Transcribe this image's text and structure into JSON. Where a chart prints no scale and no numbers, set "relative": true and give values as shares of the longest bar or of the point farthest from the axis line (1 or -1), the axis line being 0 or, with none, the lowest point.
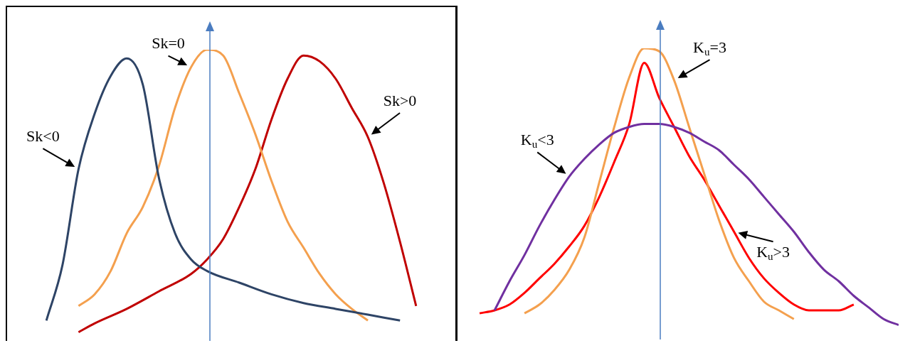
{
  "chart_data": [
    {
      "type": "line",
      "relative": true,
      "legend": false,
      "grid": false,
      "marker": "none",
      "line_style": "solid",
      "categories": [
        null,
        null,
        null,
        null,
        null,
        null,
        null,
        null,
        null,
        null,
        null,
        null,
        null,
        null,
        null,
        null,
        null,
        null,
        null,
        null,
        null,
        null,
        null,
        null,
        null,
        null,
        null,
        null
      ],
      "series": [
        {
          "name": "Sk<0",
          "color": "#2e4466",
          "values": [
            null,
            null,
            0.07,
            0.26,
            0.59,
            0.78,
            0.91,
            0.97,
            0.88,
            0.56,
            0.37,
            0.28,
            0.24,
            null,
            0.2,
            null,
            0.16,
            null,
            0.13,
            null,
            0.11,
            null,
            0.09,
            null,
            0.07,
            null,
            null,
            null
          ]
        },
        {
          "name": "Sk=0",
          "color": "#f4a04e",
          "values": [
            null,
            null,
            null,
            null,
            0.12,
            0.16,
            0.24,
            0.37,
            0.46,
            0.6,
            0.8,
            0.94,
            1.0,
            0.98,
            0.85,
            0.71,
            0.55,
            0.41,
            0.32,
            0.23,
            0.16,
            0.11,
            0.07,
            null,
            null,
            null,
            null,
            null
          ]
        },
        {
          "name": "Sk>0",
          "color": "#c00000",
          "values": [
            null,
            null,
            null,
            null,
            0.03,
            0.06,
            null,
            0.11,
            null,
            0.17,
            null,
            0.23,
            0.28,
            0.35,
            0.46,
            0.59,
            0.76,
            0.9,
            0.98,
            0.96,
            0.9,
            0.8,
            0.7,
            0.54,
            0.34,
            0.12,
            null,
            null
          ]
        }
      ]
    },
    {
      "type": "line",
      "relative": true,
      "legend": false,
      "grid": false,
      "marker": "none",
      "line_style": "solid",
      "categories": [
        null,
        null,
        null,
        null,
        null,
        null,
        null,
        null,
        null,
        null,
        null,
        null,
        null,
        null,
        null,
        null,
        null,
        null,
        null,
        null,
        null,
        null,
        null,
        null,
        null,
        null,
        null,
        null,
        null,
        null
      ],
      "series": [
        {
          "name": "K$_{u}$<3",
          "color": "#7030a0",
          "values": [
            null,
            null,
            0.1,
            0.2,
            0.29,
            0.39,
            0.48,
            0.56,
            0.62,
            0.67,
            0.71,
            0.73,
            0.74,
            0.74,
            0.73,
            0.71,
            0.68,
            0.65,
            0.6,
            0.55,
            0.49,
            0.43,
            0.37,
            0.3,
            0.24,
            0.2,
            0.15,
            0.11,
            0.07,
            0.05
          ]
        },
        {
          "name": "K$_{u}$=3",
          "color": "#f4a04e",
          "values": [
            null,
            null,
            null,
            null,
            0.09,
            0.12,
            0.17,
            0.24,
            0.35,
            0.54,
            0.73,
            0.9,
            1.0,
            0.99,
            0.89,
            0.73,
            0.57,
            0.41,
            0.28,
            0.2,
            0.13,
            0.1,
            0.07,
            null,
            null,
            null,
            null,
            null,
            null,
            null
          ]
        },
        {
          "name": "K$_{u}$>3",
          "color": "#ff0000",
          "values": [
            null,
            0.09,
            0.1,
            0.12,
            0.16,
            0.21,
            0.26,
            0.32,
            0.39,
            0.49,
            0.61,
            0.74,
            0.95,
            0.83,
            0.73,
            0.63,
            0.55,
            0.46,
            0.37,
            0.28,
            0.21,
            0.16,
            0.12,
            0.1,
            0.1,
            0.1,
            0.12,
            null,
            null,
            null
          ]
        }
      ]
    }
  ]
}
